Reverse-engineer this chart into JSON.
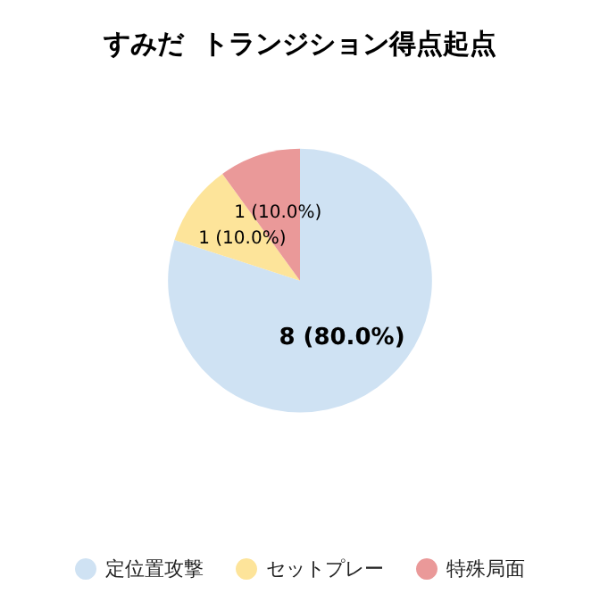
{
  "chart_data": {
    "type": "pie",
    "title": "すみだ  トランジション得点起点",
    "categories": [
      "定位置攻撃",
      "セットプレー",
      "特殊局面"
    ],
    "values": [
      8,
      1,
      1
    ],
    "colors": [
      "#cfe2f3",
      "#fde49a",
      "#ea9999"
    ],
    "value_labels": [
      "8 (80.0%)",
      "1 (10.0%)",
      "1 (10.0%)"
    ],
    "legend": "bottom"
  }
}
